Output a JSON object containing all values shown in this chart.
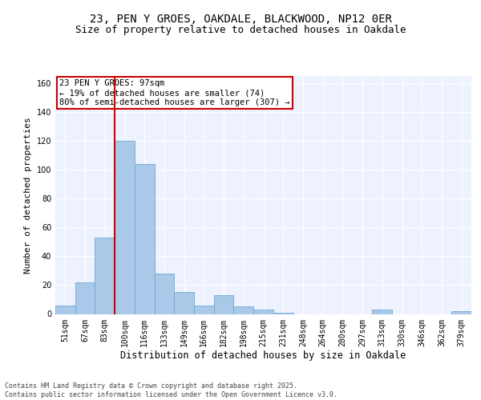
{
  "title1": "23, PEN Y GROES, OAKDALE, BLACKWOOD, NP12 0ER",
  "title2": "Size of property relative to detached houses in Oakdale",
  "xlabel": "Distribution of detached houses by size in Oakdale",
  "ylabel": "Number of detached properties",
  "categories": [
    "51sqm",
    "67sqm",
    "83sqm",
    "100sqm",
    "116sqm",
    "133sqm",
    "149sqm",
    "166sqm",
    "182sqm",
    "198sqm",
    "215sqm",
    "231sqm",
    "248sqm",
    "264sqm",
    "280sqm",
    "297sqm",
    "313sqm",
    "330sqm",
    "346sqm",
    "362sqm",
    "379sqm"
  ],
  "values": [
    6,
    22,
    53,
    120,
    104,
    28,
    15,
    6,
    13,
    5,
    3,
    1,
    0,
    0,
    0,
    0,
    3,
    0,
    0,
    0,
    2
  ],
  "bar_color": "#aac8e8",
  "bar_edge_color": "#6aaad4",
  "vline_x_idx": 3,
  "vline_color": "#cc0000",
  "annotation_text": "23 PEN Y GROES: 97sqm\n← 19% of detached houses are smaller (74)\n80% of semi-detached houses are larger (307) →",
  "annotation_box_color": "#cc0000",
  "ylim": [
    0,
    165
  ],
  "yticks": [
    0,
    20,
    40,
    60,
    80,
    100,
    120,
    140,
    160
  ],
  "background_color": "#eef2ff",
  "grid_color": "#ffffff",
  "footer_text": "Contains HM Land Registry data © Crown copyright and database right 2025.\nContains public sector information licensed under the Open Government Licence v3.0.",
  "title1_fontsize": 10,
  "title2_fontsize": 9,
  "ylabel_fontsize": 8,
  "xlabel_fontsize": 8.5,
  "tick_fontsize": 7,
  "annot_fontsize": 7.5,
  "footer_fontsize": 6
}
